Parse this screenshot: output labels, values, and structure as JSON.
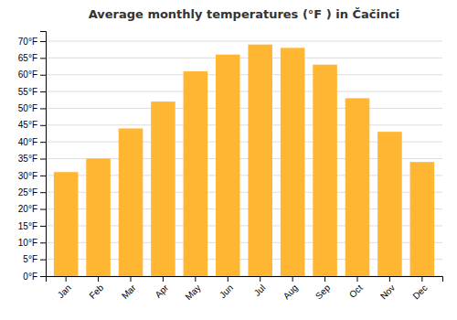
{
  "chart_data": {
    "type": "bar",
    "title": "Average monthly temperatures (°F ) in Čačinci",
    "categories": [
      "Jan",
      "Feb",
      "Mar",
      "Apr",
      "May",
      "Jun",
      "Jul",
      "Aug",
      "Sep",
      "Oct",
      "Nov",
      "Dec"
    ],
    "values": [
      31,
      35,
      44,
      52,
      61,
      66,
      69,
      68,
      63,
      53,
      43,
      34
    ],
    "color": "#FFB733",
    "ylim": [
      0,
      73
    ],
    "yticks": [
      {
        "value": 0,
        "label": "0°F"
      },
      {
        "value": 5,
        "label": "5°F"
      },
      {
        "value": 10,
        "label": "10°F"
      },
      {
        "value": 15,
        "label": "15°F"
      },
      {
        "value": 20,
        "label": "20°F"
      },
      {
        "value": 25,
        "label": "25°F"
      },
      {
        "value": 30,
        "label": "30°F"
      },
      {
        "value": 35,
        "label": "35°F"
      },
      {
        "value": 40,
        "label": "40°F"
      },
      {
        "value": 45,
        "label": "45°F"
      },
      {
        "value": 50,
        "label": "50°F"
      },
      {
        "value": 55,
        "label": "55°F"
      },
      {
        "value": 60,
        "label": "60°F"
      },
      {
        "value": 65,
        "label": "65°F"
      },
      {
        "value": 70,
        "label": "70°F"
      }
    ],
    "grid": true
  }
}
